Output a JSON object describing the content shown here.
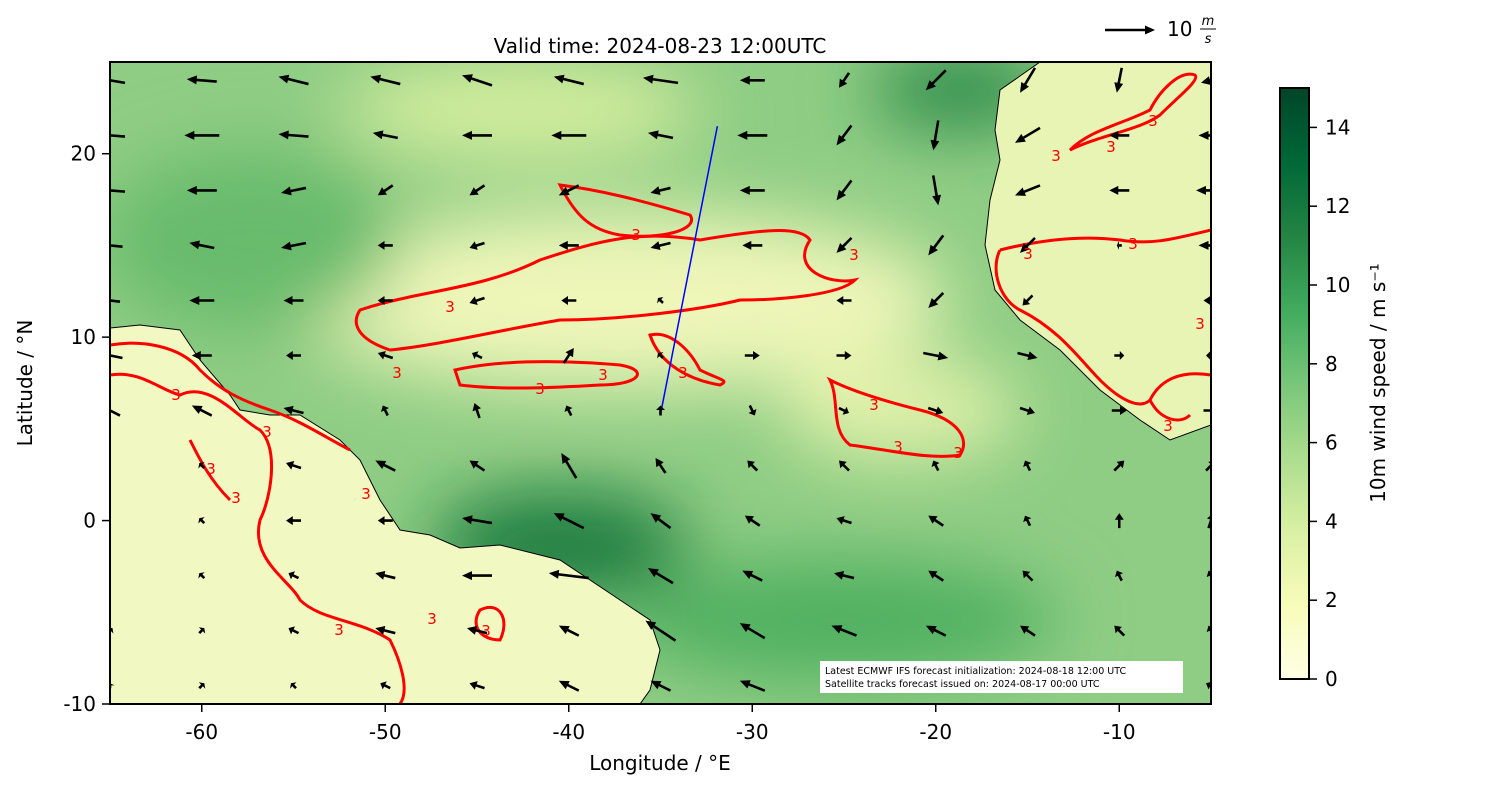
{
  "chart_data": {
    "type": "quiver",
    "title": "Valid time: 2024-08-23 12:00UTC",
    "xlabel": "Longitude / °E",
    "ylabel": "Latitude / °N",
    "xlim": [
      -65,
      -5
    ],
    "ylim": [
      -10,
      25
    ],
    "xticks": [
      -60,
      -50,
      -40,
      -30,
      -20,
      -10
    ],
    "yticks": [
      -10,
      0,
      10,
      20
    ],
    "wind": {
      "color": "#000000",
      "lon": [
        -65,
        -60,
        -55,
        -50,
        -45,
        -40,
        -35,
        -30,
        -25,
        -20,
        -15,
        -10,
        -5
      ],
      "lat": [
        24,
        21,
        18,
        15,
        12,
        9,
        6,
        3,
        0,
        -3,
        -6,
        -9
      ],
      "u": [
        [
          -6,
          -6,
          -6,
          -6,
          -6,
          -6,
          -7,
          -5,
          -2,
          -4,
          -3,
          -1,
          -4
        ],
        [
          -6,
          -7,
          -6,
          -5,
          -6,
          -7,
          -5,
          -6,
          -3,
          -1,
          -5,
          -4,
          -5
        ],
        [
          -6,
          -6,
          -5,
          -3,
          -3,
          -4,
          -4,
          -5,
          -3,
          1,
          -5,
          -4,
          -6
        ],
        [
          -5,
          -5,
          -5,
          -3,
          -3,
          -4,
          -4,
          -4,
          -3,
          -3,
          -3,
          -1,
          -5
        ],
        [
          -4,
          -5,
          -4,
          -3,
          -3,
          -3,
          -1,
          0,
          -3,
          -3,
          -2,
          0,
          -3
        ],
        [
          -5,
          -4,
          -3,
          -3,
          -2,
          2,
          -1,
          3,
          3,
          5,
          4,
          2,
          -2
        ],
        [
          -4,
          -4,
          -4,
          -1,
          -1,
          -1,
          0,
          1,
          2,
          3,
          3,
          3,
          3
        ],
        [
          0,
          -1,
          -3,
          -4,
          -3,
          -3,
          -2,
          -2,
          -2,
          -1,
          -1,
          2,
          2
        ],
        [
          0,
          -1,
          -3,
          -3,
          -6,
          -6,
          -4,
          -3,
          -3,
          -3,
          -1,
          0,
          1
        ],
        [
          0,
          -1,
          -2,
          -4,
          -6,
          -8,
          -5,
          -4,
          -4,
          -3,
          -2,
          -1,
          -1
        ],
        [
          1,
          1,
          -2,
          -4,
          -4,
          -4,
          -6,
          -5,
          -5,
          -4,
          -3,
          -2,
          -1
        ],
        [
          0,
          1,
          -1,
          -2,
          -3,
          -4,
          -4,
          -5,
          -5,
          -4,
          -3,
          -2,
          -2
        ]
      ],
      "v": [
        [
          1,
          0.5,
          1.5,
          1.5,
          2,
          1.5,
          1,
          0,
          -3,
          -4,
          -5,
          -5,
          -1
        ],
        [
          0.5,
          0,
          0.5,
          1,
          0,
          0,
          1,
          0,
          -4,
          -6,
          -3,
          0,
          0
        ],
        [
          0.5,
          0,
          -1,
          -2,
          -2,
          -2,
          -1,
          0,
          -4,
          -6,
          -2,
          0,
          0
        ],
        [
          0.5,
          1,
          -1,
          0,
          -1,
          0,
          -1,
          0,
          -3,
          -4,
          -3,
          0,
          0
        ],
        [
          0.5,
          0,
          0,
          0,
          -1,
          0,
          1,
          0,
          0,
          -3,
          -2,
          0,
          0
        ],
        [
          1,
          0,
          0,
          1,
          1,
          3,
          1,
          0,
          0,
          -1,
          -1,
          0,
          0
        ],
        [
          2,
          2,
          1,
          2,
          3,
          2,
          2,
          -2,
          -1,
          -1,
          -1,
          0,
          0
        ],
        [
          0,
          1,
          1,
          2,
          2,
          5,
          3,
          2,
          2,
          2,
          2,
          2,
          2
        ],
        [
          0,
          1,
          0,
          0,
          1,
          3,
          3,
          2,
          1,
          2,
          2,
          3,
          3
        ],
        [
          0,
          1,
          1,
          1,
          0,
          1,
          3,
          2,
          1,
          2,
          2,
          2,
          2
        ],
        [
          1,
          1,
          1,
          1,
          1,
          2,
          4,
          3,
          2,
          2,
          2,
          2,
          2
        ],
        [
          1,
          1,
          1,
          1,
          1,
          2,
          2,
          2,
          1,
          1,
          1,
          1,
          1
        ]
      ]
    },
    "key_value": 10,
    "key_unit_num": "m",
    "key_unit_den": "s",
    "contour_level": 3,
    "contour_color": "#ff0000",
    "track": {
      "lon": [
        -35,
        -31.9
      ],
      "lat": [
        5.8,
        21.5
      ],
      "color": "#0000ff"
    },
    "colorbar": {
      "label": "10m wind speed / m s⁻¹",
      "lim": [
        0,
        15
      ],
      "ticks": [
        0,
        2,
        4,
        6,
        8,
        10,
        12,
        14
      ],
      "colormap": [
        "#ffffe5",
        "#f7fcb9",
        "#d9f0a3",
        "#addd8e",
        "#78c679",
        "#41ab5d",
        "#238443",
        "#006837",
        "#004529"
      ]
    },
    "annotation": [
      "Latest ECMWF IFS forecast initialization: 2024-08-18 12:00 UTC",
      "Satellite tracks forecast issued on: 2024-08-17 00:00 UTC"
    ]
  }
}
